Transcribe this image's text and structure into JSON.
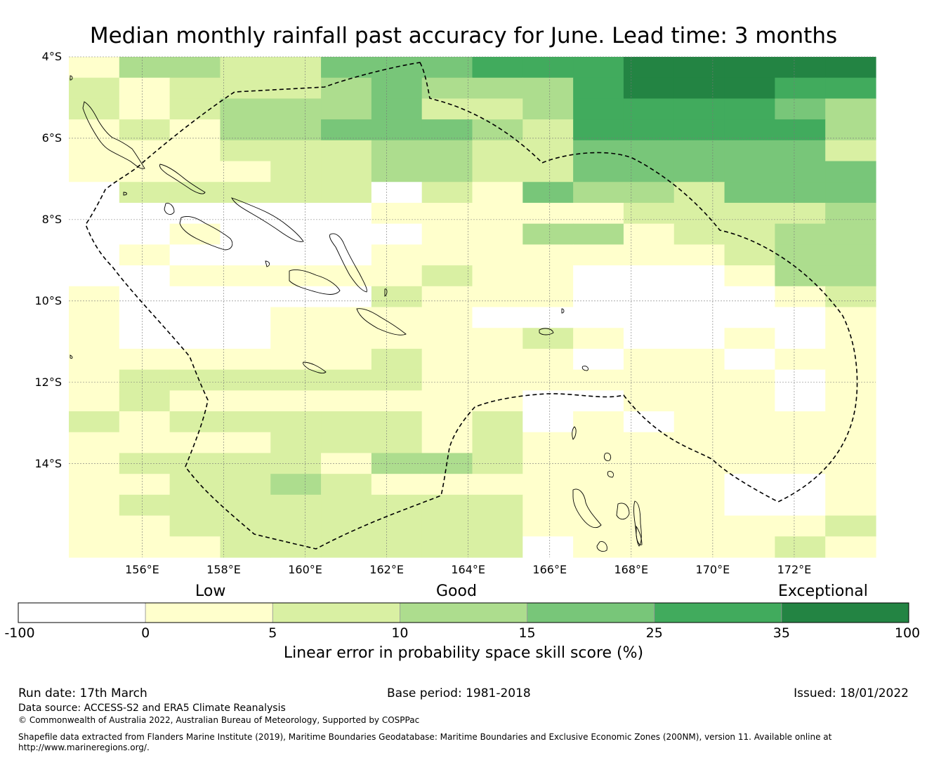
{
  "title": "Median monthly rainfall past accuracy for June. Lead time: 3 months",
  "map": {
    "latitude_labels": [
      "4°S",
      "6°S",
      "8°S",
      "10°S",
      "12°S",
      "14°S"
    ],
    "latitude_values": [
      -4,
      -6,
      -8,
      -10,
      -12,
      -14
    ],
    "longitude_labels": [
      "156°E",
      "158°E",
      "160°E",
      "162°E",
      "164°E",
      "166°E",
      "168°E",
      "170°E",
      "172°E"
    ],
    "longitude_values": [
      156,
      158,
      160,
      162,
      164,
      166,
      168,
      170,
      172
    ],
    "lon_range": [
      154.2,
      174.0
    ],
    "lat_range": [
      -16.3,
      -4.0
    ],
    "grid_rows": [
      "1332244455566666",
      "2122234333566655",
      "2123334223555543",
      "1213344432555553",
      "1112223322444442",
      "1111223322444444",
      "0222220214332444",
      "0000001111122223",
      "0010000113312233",
      "0100001111111233",
      "0011111211000133",
      "1000002111000012",
      "1000111100000001",
      "1000111112100101",
      "1111112111011011",
      "1222222111111101",
      "1211111110011101",
      "2122222120101111",
      "1111222121111111",
      "1222213321111111",
      "1122321111111001",
      "1222222221111001",
      "1122222221111112",
      "1112222220111121"
    ]
  },
  "colorbar": {
    "category_labels": [
      "Low",
      "Good",
      "Exceptional"
    ],
    "tick_labels": [
      "-100",
      "0",
      "5",
      "10",
      "15",
      "25",
      "35",
      "100"
    ],
    "colors": [
      "#ffffff",
      "#ffffcc",
      "#d9f0a3",
      "#addd8e",
      "#78c679",
      "#41ab5d",
      "#238443"
    ],
    "title": "Linear error in probability space skill score (%)"
  },
  "footer": {
    "run_date": "Run date: 17th March",
    "base_period": "Base period: 1981-2018",
    "issued": "Issued: 18/01/2022",
    "data_source": "Data source: ACCESS-S2 and ERA5 Climate Reanalysis",
    "copyright": "© Commonwealth of Australia 2022, Australian Bureau of Meteorology, Supported by COSPPac",
    "shapefile_line1": "Shapefile data extracted from Flanders Marine Institute (2019), Maritime Boundaries Geodatabase: Maritime Boundaries and Exclusive Economic Zones (200NM), version 11. Available online at",
    "shapefile_line2": "http://www.marineregions.org/."
  }
}
